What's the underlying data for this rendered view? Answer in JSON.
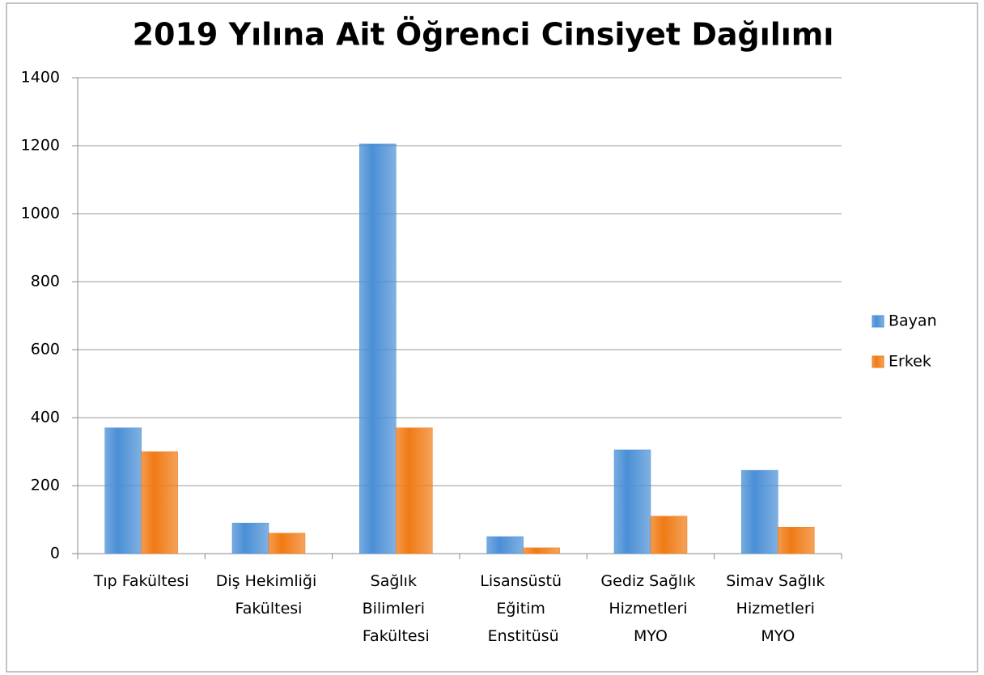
{
  "chart_data": {
    "type": "bar",
    "title": "2019 Yılına Ait Öğrenci Cinsiyet Dağılımı",
    "categories": [
      "Tıp Fakültesi",
      "Diş Hekimliği Fakültesi",
      "Sağlık Bilimleri Fakültesi",
      "Lisansüstü Eğitim Enstitüsü",
      "Gediz Sağlık Hizmetleri MYO",
      "Simav Sağlık Hizmetleri MYO"
    ],
    "series": [
      {
        "name": "Bayan",
        "color": "#4a8fd6",
        "values": [
          370,
          90,
          1205,
          50,
          305,
          245
        ]
      },
      {
        "name": "Erkek",
        "color": "#f07a14",
        "values": [
          300,
          60,
          370,
          17,
          110,
          78
        ]
      }
    ],
    "ylim": [
      0,
      1400
    ],
    "yticks": [
      0,
      200,
      400,
      600,
      800,
      1000,
      1200,
      1400
    ],
    "grid": true,
    "legend": "right"
  }
}
